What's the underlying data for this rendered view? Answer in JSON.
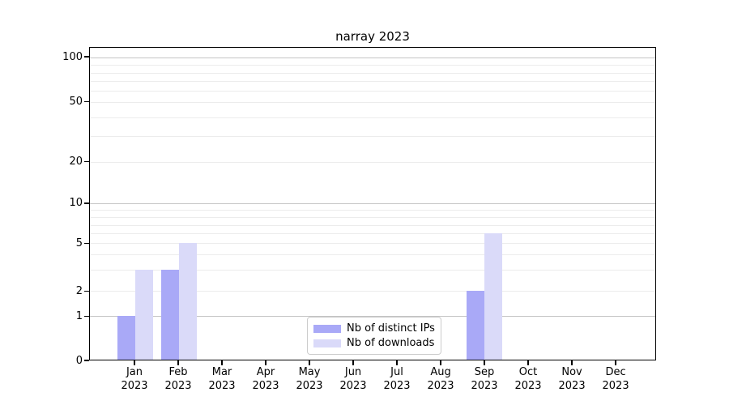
{
  "title": "narray 2023",
  "colors": {
    "bar_distinct_ips": "#a9a9f7",
    "bar_downloads": "#dadaf9",
    "grid_major": "#c4c4c4",
    "grid_minor": "#ececec",
    "spine": "#000000",
    "legend_border": "#cccccc",
    "text": "#000000"
  },
  "chart_data": {
    "type": "bar",
    "title": "narray 2023",
    "categories": [
      {
        "month": "Jan",
        "year": "2023"
      },
      {
        "month": "Feb",
        "year": "2023"
      },
      {
        "month": "Mar",
        "year": "2023"
      },
      {
        "month": "Apr",
        "year": "2023"
      },
      {
        "month": "May",
        "year": "2023"
      },
      {
        "month": "Jun",
        "year": "2023"
      },
      {
        "month": "Jul",
        "year": "2023"
      },
      {
        "month": "Aug",
        "year": "2023"
      },
      {
        "month": "Sep",
        "year": "2023"
      },
      {
        "month": "Oct",
        "year": "2023"
      },
      {
        "month": "Nov",
        "year": "2023"
      },
      {
        "month": "Dec",
        "year": "2023"
      }
    ],
    "series": [
      {
        "name": "Nb of distinct IPs",
        "color": "#a9a9f7",
        "values": [
          1,
          3,
          0,
          0,
          0,
          0,
          0,
          0,
          2,
          0,
          0,
          0
        ]
      },
      {
        "name": "Nb of downloads",
        "color": "#dadaf9",
        "values": [
          3,
          5,
          0,
          0,
          0,
          0,
          0,
          0,
          6,
          0,
          0,
          0
        ]
      }
    ],
    "y_axis": {
      "scale": "symlog",
      "tick_values": [
        100,
        50,
        20,
        10,
        5,
        2,
        1,
        0
      ],
      "major_gridline_values": [
        100,
        10,
        1
      ],
      "minor_gridline_values": [
        90,
        80,
        70,
        60,
        50,
        40,
        30,
        20,
        9,
        8,
        7,
        6,
        5,
        4,
        3,
        2
      ],
      "ylim": [
        0,
        120
      ]
    },
    "grid": "horizontal",
    "legend_position": "lower center, inside axes"
  }
}
